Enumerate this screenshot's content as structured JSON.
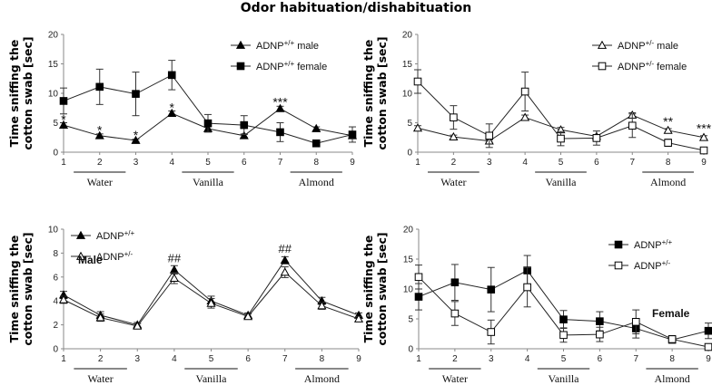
{
  "figure_title": "Odor habituation/dishabituation",
  "chart_data": [
    {
      "type": "line",
      "title": "",
      "ylabel": [
        "Time sniffing the",
        "cotton swab [sec]"
      ],
      "ylim": [
        0,
        20
      ],
      "yticks": [
        0,
        5,
        10,
        15,
        20
      ],
      "x": [
        1,
        2,
        3,
        4,
        5,
        6,
        7,
        8,
        9
      ],
      "groups": [
        "Water",
        "Vanilla",
        "Almond"
      ],
      "legend_position": "top-right",
      "series": [
        {
          "name_base": "ADNP",
          "name_sup": "+/+",
          "name_suffix": " male",
          "marker": "triangle-filled",
          "values": [
            4.6,
            2.8,
            2.0,
            6.6,
            4.0,
            2.8,
            7.4,
            4.0,
            2.8
          ],
          "errors": [
            0.4,
            0.3,
            0.2,
            0.4,
            0.4,
            0.3,
            0.4,
            0.3,
            0.3
          ]
        },
        {
          "name_base": "ADNP",
          "name_sup": "+/+",
          "name_suffix": " female",
          "marker": "square-filled",
          "values": [
            8.7,
            11.1,
            9.9,
            13.1,
            4.9,
            4.6,
            3.4,
            1.5,
            3.0
          ],
          "errors": [
            2.2,
            3.0,
            3.7,
            2.5,
            1.5,
            1.6,
            1.6,
            0.4,
            1.3
          ]
        }
      ],
      "annotations": [
        {
          "x": 1,
          "y": 5.8,
          "text": "*"
        },
        {
          "x": 2,
          "y": 3.9,
          "text": "*"
        },
        {
          "x": 3,
          "y": 3.1,
          "text": "*"
        },
        {
          "x": 4,
          "y": 7.8,
          "text": "*"
        },
        {
          "x": 7,
          "y": 8.7,
          "text": "***"
        }
      ]
    },
    {
      "type": "line",
      "title": "",
      "ylabel": [
        "Time sniffing the",
        "cotton swab [sec]"
      ],
      "ylim": [
        0,
        20
      ],
      "yticks": [
        0,
        5,
        10,
        15,
        20
      ],
      "x": [
        1,
        2,
        3,
        4,
        5,
        6,
        7,
        8,
        9
      ],
      "groups": [
        "Water",
        "Vanilla",
        "Almond"
      ],
      "legend_position": "top-right",
      "series": [
        {
          "name_base": "ADNP",
          "name_sup": "+/-",
          "name_suffix": " male",
          "marker": "triangle-open",
          "values": [
            4.1,
            2.6,
            1.9,
            5.9,
            3.8,
            2.7,
            6.3,
            3.7,
            2.5
          ],
          "errors": [
            0.4,
            0.3,
            0.2,
            0.4,
            0.4,
            0.3,
            0.4,
            0.3,
            0.3
          ]
        },
        {
          "name_base": "ADNP",
          "name_sup": "+/-",
          "name_suffix": " female",
          "marker": "square-open",
          "values": [
            12.0,
            5.9,
            2.8,
            10.3,
            2.3,
            2.4,
            4.5,
            1.6,
            0.3
          ],
          "errors": [
            2.0,
            2.0,
            2.0,
            3.3,
            1.2,
            1.2,
            2.0,
            0.6,
            0.3
          ]
        }
      ],
      "annotations": [
        {
          "x": 8,
          "y": 5.4,
          "text": "**"
        },
        {
          "x": 9,
          "y": 4.2,
          "text": "***"
        }
      ]
    },
    {
      "type": "line",
      "title": "",
      "panel_label": "Male",
      "ylabel": [
        "Time sniffing the",
        "cotton swab [sec]"
      ],
      "ylim": [
        0,
        10
      ],
      "yticks": [
        0,
        2,
        4,
        6,
        8,
        10
      ],
      "x": [
        1,
        2,
        3,
        4,
        5,
        6,
        7,
        8,
        9
      ],
      "groups": [
        "Water",
        "Vanilla",
        "Almond"
      ],
      "legend_position": "top-left",
      "series": [
        {
          "name_base": "ADNP",
          "name_sup": "+/+",
          "name_suffix": "",
          "marker": "triangle-filled",
          "values": [
            4.5,
            2.8,
            2.0,
            6.6,
            4.0,
            2.8,
            7.4,
            4.0,
            2.8
          ],
          "errors": [
            0.3,
            0.3,
            0.2,
            0.35,
            0.4,
            0.2,
            0.3,
            0.3,
            0.2
          ]
        },
        {
          "name_base": "ADNP",
          "name_sup": "+/-",
          "name_suffix": "",
          "marker": "triangle-open",
          "values": [
            4.1,
            2.6,
            1.9,
            5.9,
            3.8,
            2.7,
            6.4,
            3.6,
            2.5
          ],
          "errors": [
            0.3,
            0.3,
            0.2,
            0.45,
            0.4,
            0.2,
            0.45,
            0.3,
            0.2
          ]
        }
      ],
      "annotations": [
        {
          "x": 4,
          "y": 7.7,
          "text": "##"
        },
        {
          "x": 7,
          "y": 8.5,
          "text": "##"
        }
      ]
    },
    {
      "type": "line",
      "title": "",
      "panel_label": "Female",
      "ylabel": [
        "Time sniffing the",
        "cotton swab [sec]"
      ],
      "ylim": [
        0,
        20
      ],
      "yticks": [
        0,
        5,
        10,
        15,
        20
      ],
      "x": [
        1,
        2,
        3,
        4,
        5,
        6,
        7,
        8,
        9
      ],
      "groups": [
        "Water",
        "Vanilla",
        "Almond"
      ],
      "legend_position": "top-right",
      "series": [
        {
          "name_base": "ADNP",
          "name_sup": "+/+",
          "name_suffix": "",
          "marker": "square-filled",
          "values": [
            8.7,
            11.1,
            9.9,
            13.1,
            4.9,
            4.6,
            3.4,
            1.5,
            3.0
          ],
          "errors": [
            2.2,
            3.0,
            3.7,
            2.5,
            1.5,
            1.6,
            1.6,
            0.4,
            1.3
          ]
        },
        {
          "name_base": "ADNP",
          "name_sup": "+/-",
          "name_suffix": "",
          "marker": "square-open",
          "values": [
            12.0,
            5.9,
            2.8,
            10.3,
            2.3,
            2.4,
            4.5,
            1.6,
            0.3
          ],
          "errors": [
            2.0,
            2.0,
            2.0,
            3.3,
            1.2,
            1.2,
            2.0,
            0.6,
            0.3
          ]
        }
      ],
      "annotations": []
    }
  ]
}
